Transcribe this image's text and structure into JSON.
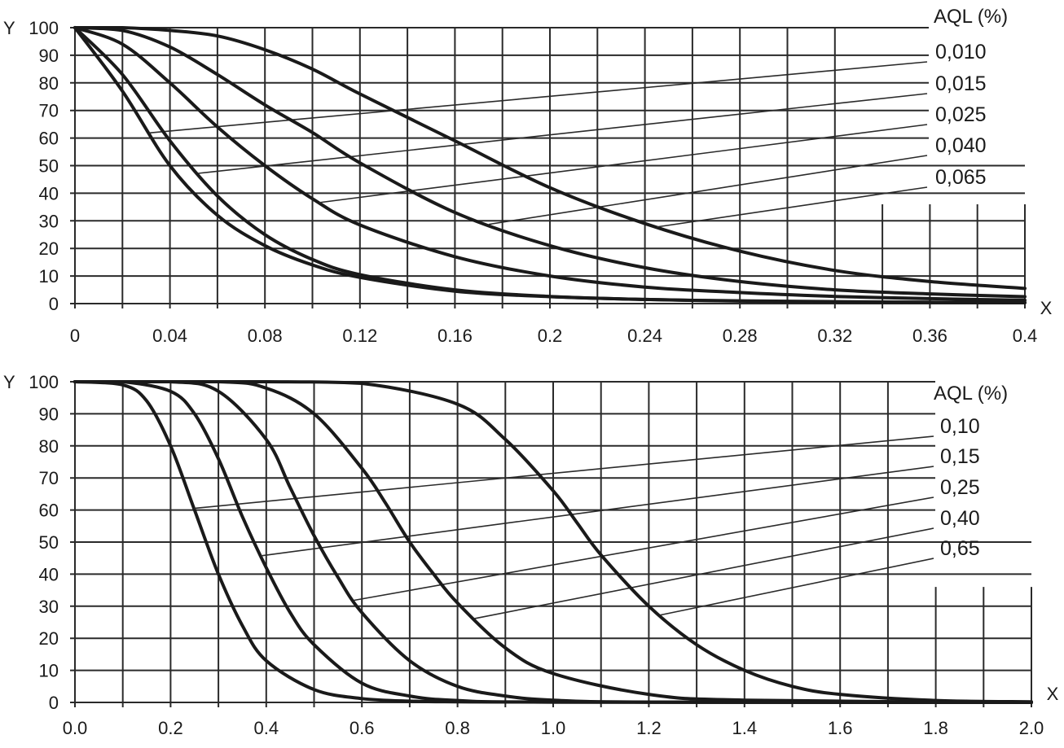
{
  "chart_data": [
    {
      "type": "line",
      "title": "",
      "xlabel": "X",
      "ylabel": "Y",
      "xlim": [
        0,
        0.4
      ],
      "ylim": [
        0,
        100
      ],
      "grid": true,
      "x_ticks": [
        "0",
        "0.04",
        "0.08",
        "0.12",
        "0.16",
        "0.2",
        "0.24",
        "0.28",
        "0.32",
        "0.36",
        "0.4"
      ],
      "y_ticks": [
        "0",
        "10",
        "20",
        "30",
        "40",
        "50",
        "60",
        "70",
        "80",
        "90",
        "100"
      ],
      "legend_title": "AQL (%)",
      "legend_position": "top-right",
      "series": [
        {
          "name": "0,010",
          "x": [
            0,
            0.02,
            0.04,
            0.06,
            0.08,
            0.1,
            0.12,
            0.16,
            0.2,
            0.24,
            0.28,
            0.32,
            0.36,
            0.4
          ],
          "values": [
            100,
            77,
            50,
            32,
            21,
            14,
            9.5,
            4.5,
            2.5,
            1.5,
            0.9,
            0.6,
            0.4,
            0.3
          ]
        },
        {
          "name": "0,015",
          "x": [
            0,
            0.02,
            0.04,
            0.06,
            0.08,
            0.1,
            0.12,
            0.16,
            0.2,
            0.24,
            0.28,
            0.32,
            0.36,
            0.4
          ],
          "values": [
            100,
            83,
            59,
            39,
            25,
            16,
            10.5,
            5,
            2.6,
            1.5,
            1,
            0.7,
            0.5,
            0.4
          ]
        },
        {
          "name": "0,025",
          "x": [
            0,
            0.02,
            0.04,
            0.06,
            0.08,
            0.1,
            0.12,
            0.16,
            0.2,
            0.24,
            0.28,
            0.32,
            0.36,
            0.4
          ],
          "values": [
            100,
            94,
            80,
            64,
            50,
            38,
            28.5,
            17,
            10,
            6,
            4,
            2.6,
            1.8,
            1.2
          ]
        },
        {
          "name": "0,040",
          "x": [
            0,
            0.02,
            0.04,
            0.06,
            0.08,
            0.1,
            0.12,
            0.16,
            0.2,
            0.24,
            0.28,
            0.32,
            0.36,
            0.4
          ],
          "values": [
            100,
            99,
            93,
            83,
            72,
            62,
            51,
            33,
            21,
            13,
            8,
            5,
            3.5,
            2.5
          ]
        },
        {
          "name": "0,065",
          "x": [
            0,
            0.02,
            0.04,
            0.06,
            0.08,
            0.1,
            0.12,
            0.16,
            0.2,
            0.24,
            0.28,
            0.32,
            0.36,
            0.4
          ],
          "values": [
            100,
            100,
            99,
            97,
            92,
            85,
            76,
            59,
            42,
            29,
            19,
            12,
            8,
            5.5
          ]
        }
      ]
    },
    {
      "type": "line",
      "title": "",
      "xlabel": "X",
      "ylabel": "Y",
      "xlim": [
        0,
        2.0
      ],
      "ylim": [
        0,
        100
      ],
      "grid": true,
      "x_ticks": [
        "0.0",
        "0.2",
        "0.4",
        "0.6",
        "0.8",
        "1.0",
        "1.2",
        "1.4",
        "1.6",
        "1.8",
        "2.0"
      ],
      "y_ticks": [
        "0",
        "10",
        "20",
        "30",
        "40",
        "50",
        "60",
        "70",
        "80",
        "90",
        "100"
      ],
      "legend_title": "AQL (%)",
      "legend_position": "top-right",
      "series": [
        {
          "name": "0,10",
          "x": [
            0,
            0.1,
            0.15,
            0.2,
            0.25,
            0.3,
            0.35,
            0.4,
            0.5,
            0.6,
            0.7,
            0.8,
            1.0,
            2.0
          ],
          "values": [
            100,
            99,
            94,
            80,
            60,
            40,
            24,
            13,
            4,
            1.2,
            0.4,
            0.2,
            0.1,
            0
          ]
        },
        {
          "name": "0,15",
          "x": [
            0,
            0.1,
            0.2,
            0.25,
            0.3,
            0.35,
            0.4,
            0.45,
            0.5,
            0.6,
            0.7,
            0.8,
            1.0,
            2.0
          ],
          "values": [
            100,
            100,
            97,
            90,
            76,
            58,
            42,
            28,
            18,
            6,
            2,
            0.6,
            0.1,
            0
          ]
        },
        {
          "name": "0,25",
          "x": [
            0,
            0.2,
            0.3,
            0.4,
            0.45,
            0.5,
            0.55,
            0.6,
            0.7,
            0.8,
            0.9,
            1.0,
            1.2,
            2.0
          ],
          "values": [
            100,
            100,
            97,
            82,
            67,
            52,
            39,
            28,
            13,
            5,
            2,
            0.7,
            0.1,
            0
          ]
        },
        {
          "name": "0,40",
          "x": [
            0,
            0.3,
            0.4,
            0.5,
            0.6,
            0.65,
            0.7,
            0.75,
            0.8,
            0.9,
            1.0,
            1.2,
            1.4,
            2.0
          ],
          "values": [
            100,
            100,
            98,
            90,
            73,
            62,
            50,
            40,
            31,
            17,
            9,
            2.5,
            0.7,
            0
          ]
        },
        {
          "name": "0,65",
          "x": [
            0,
            0.4,
            0.6,
            0.8,
            0.9,
            1.0,
            1.05,
            1.1,
            1.2,
            1.3,
            1.4,
            1.5,
            1.6,
            1.8,
            2.0
          ],
          "values": [
            100,
            100,
            99.5,
            93,
            82,
            66,
            56,
            46,
            30,
            18,
            10,
            5,
            2.5,
            0.6,
            0.2
          ]
        }
      ]
    }
  ]
}
